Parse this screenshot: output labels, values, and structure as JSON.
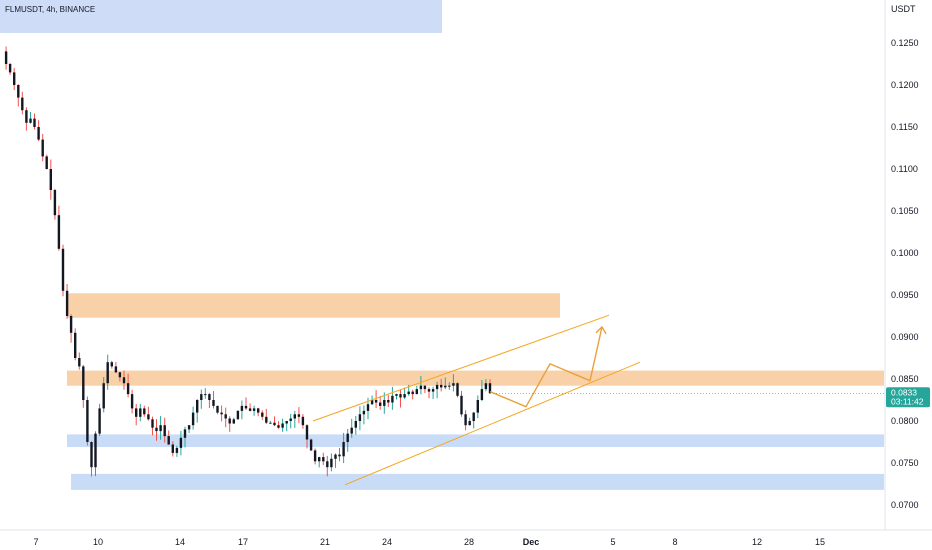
{
  "header": {
    "symbol_line": "FLMUSDT, 4h, BINANCE"
  },
  "price_axis": {
    "unit": "USDT",
    "ticks": [
      "0.1250",
      "0.1200",
      "0.1150",
      "0.1100",
      "0.1050",
      "0.1000",
      "0.0950",
      "0.0900",
      "0.0850",
      "0.0800",
      "0.0750",
      "0.0700"
    ]
  },
  "time_axis": {
    "ticks": [
      "7",
      "10",
      "14",
      "17",
      "21",
      "24",
      "28",
      "Dec",
      "5",
      "8",
      "12",
      "15"
    ],
    "bold_ticks": [
      "Dec"
    ]
  },
  "last_price": {
    "value": "0.0833",
    "countdown": "03:11:42",
    "color": "#26a69a"
  },
  "colors": {
    "up": "#26a69a",
    "down": "#ef5350",
    "candle_body": "#131722",
    "supply_zone": "#f7c594",
    "demand_zone": "#bcd3f5",
    "channel": "#f5a623",
    "projection": "#e8a13c"
  },
  "chart_data": {
    "type": "candlestick",
    "title": "FLMUSDT, 4h, BINANCE",
    "xlabel": "",
    "ylabel": "USDT",
    "ylim": [
      0.0685,
      0.1265
    ],
    "x_ticks": [
      "7",
      "10",
      "14",
      "17",
      "21",
      "24",
      "28",
      "Dec",
      "5",
      "8",
      "12",
      "15"
    ],
    "y_ticks": [
      0.125,
      0.12,
      0.115,
      0.11,
      0.105,
      0.1,
      0.095,
      0.09,
      0.085,
      0.08,
      0.075,
      0.07
    ],
    "grid": false,
    "last_price": 0.0833,
    "price_path": [
      0.124,
      0.1225,
      0.1215,
      0.12,
      0.1185,
      0.117,
      0.1155,
      0.116,
      0.115,
      0.1135,
      0.1115,
      0.11,
      0.1075,
      0.1045,
      0.1005,
      0.0955,
      0.0925,
      0.0905,
      0.0875,
      0.0865,
      0.0825,
      0.0775,
      0.0745,
      0.0785,
      0.0815,
      0.0845,
      0.087,
      0.0865,
      0.0858,
      0.0852,
      0.0845,
      0.0832,
      0.0815,
      0.0805,
      0.0815,
      0.0808,
      0.0802,
      0.0792,
      0.0788,
      0.0795,
      0.0782,
      0.0772,
      0.0762,
      0.0768,
      0.078,
      0.079,
      0.0795,
      0.081,
      0.0825,
      0.0832,
      0.0832,
      0.0825,
      0.0818,
      0.081,
      0.0808,
      0.0803,
      0.0797,
      0.0802,
      0.0812,
      0.0818,
      0.0815,
      0.0812,
      0.0815,
      0.081,
      0.0805,
      0.0798,
      0.0798,
      0.0795,
      0.0792,
      0.0797,
      0.08,
      0.0803,
      0.0808,
      0.0805,
      0.0795,
      0.0778,
      0.0765,
      0.0752,
      0.0757,
      0.0752,
      0.0745,
      0.0755,
      0.076,
      0.0758,
      0.0775,
      0.0785,
      0.0792,
      0.08,
      0.0808,
      0.0812,
      0.082,
      0.0825,
      0.0822,
      0.0818,
      0.0825,
      0.0822,
      0.083,
      0.0832,
      0.0828,
      0.0832,
      0.0835,
      0.0832,
      0.0838,
      0.0842,
      0.0838,
      0.0835,
      0.0838,
      0.0843,
      0.084,
      0.0842,
      0.0842,
      0.0845,
      0.083,
      0.0808,
      0.0795,
      0.08,
      0.081,
      0.0825,
      0.0838,
      0.0845,
      0.0833
    ],
    "zones": [
      {
        "kind": "supply",
        "from": 0.0923,
        "to": 0.0952
      },
      {
        "kind": "supply",
        "from": 0.0842,
        "to": 0.086
      },
      {
        "kind": "demand",
        "from": 0.0769,
        "to": 0.0784
      },
      {
        "kind": "demand",
        "from": 0.0718,
        "to": 0.0737
      }
    ],
    "ascending_channel": {
      "upper": [
        0.08,
        0.0926
      ],
      "lower": [
        0.0724,
        0.087
      ]
    },
    "projection_path": [
      0.0835,
      0.0817,
      0.0868,
      0.0848,
      0.0912
    ]
  }
}
